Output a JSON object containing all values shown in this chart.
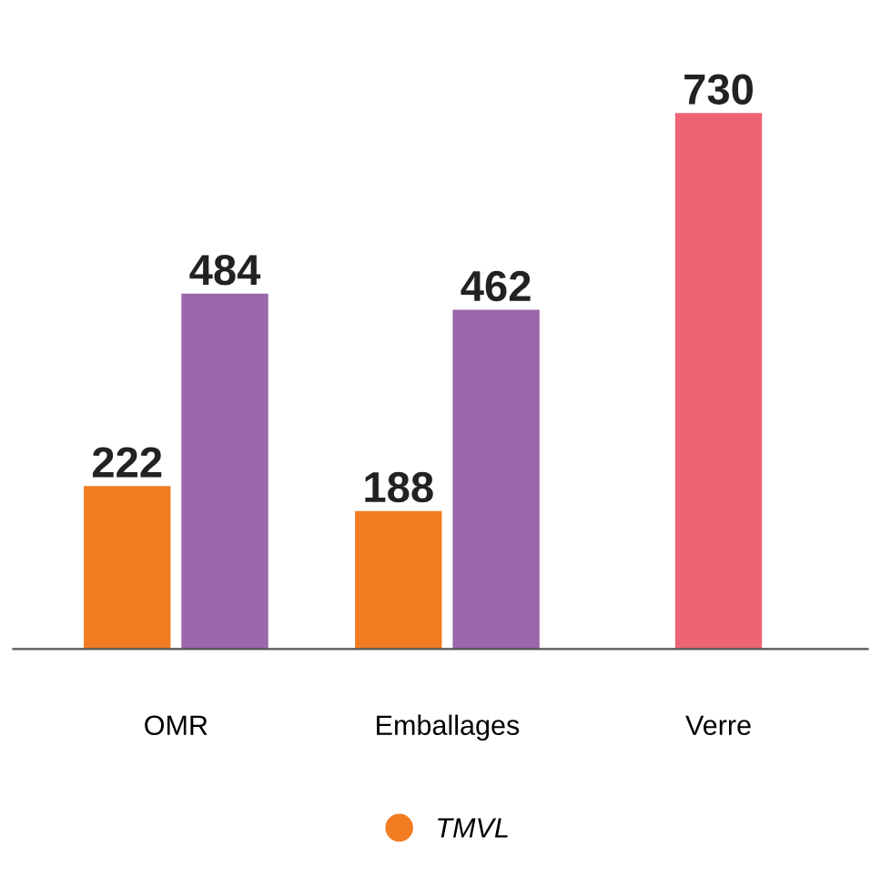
{
  "chart_data": {
    "type": "bar",
    "categories": [
      "OMR",
      "Emballages",
      "Verre"
    ],
    "series": [
      {
        "name": "TMVL",
        "color": "#f27c22",
        "values": [
          222,
          188,
          null
        ]
      },
      {
        "color": "#9b66ab",
        "values": [
          484,
          462,
          null
        ]
      },
      {
        "color": "#ee6474",
        "values": [
          null,
          null,
          730
        ]
      }
    ],
    "data_labels": true,
    "legend": "bottom",
    "grid": false,
    "tick_labels": "x"
  }
}
